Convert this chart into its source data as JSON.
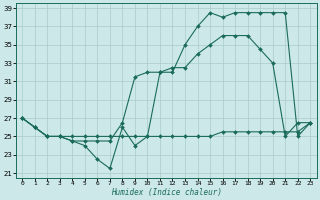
{
  "xlabel": "Humidex (Indice chaleur)",
  "background_color": "#cce8e8",
  "grid_color": "#aacccc",
  "line_color": "#1a6b5a",
  "xlim": [
    -0.5,
    23.5
  ],
  "ylim": [
    20.5,
    39.5
  ],
  "yticks": [
    21,
    23,
    25,
    27,
    29,
    31,
    33,
    35,
    37,
    39
  ],
  "xticks": [
    0,
    1,
    2,
    3,
    4,
    5,
    6,
    7,
    8,
    9,
    10,
    11,
    12,
    13,
    14,
    15,
    16,
    17,
    18,
    19,
    20,
    21,
    22,
    23
  ],
  "series": [
    {
      "x": [
        0,
        1,
        2,
        3,
        4,
        5,
        6,
        7,
        8,
        9,
        10,
        11,
        12,
        13,
        14,
        15,
        16,
        17,
        18,
        19,
        20,
        21,
        22,
        23
      ],
      "y": [
        27,
        26,
        25,
        25,
        24.5,
        24,
        22.5,
        21.5,
        26,
        24,
        25,
        32,
        32,
        35,
        37,
        38.5,
        38,
        38.5,
        38.5,
        38.5,
        38.5,
        38.5,
        25,
        26.5
      ]
    },
    {
      "x": [
        0,
        1,
        2,
        3,
        4,
        5,
        6,
        7,
        8,
        9,
        10,
        11,
        12,
        13,
        14,
        15,
        16,
        17,
        18,
        19,
        20,
        21,
        22,
        23
      ],
      "y": [
        27,
        26,
        25,
        25,
        24.5,
        24.5,
        24.5,
        24.5,
        26.5,
        31.5,
        32,
        32,
        32.5,
        32.5,
        34,
        35,
        36,
        36,
        36,
        34.5,
        33,
        25,
        26.5,
        26.5
      ]
    },
    {
      "x": [
        0,
        1,
        2,
        3,
        4,
        5,
        6,
        7,
        8,
        9,
        10,
        11,
        12,
        13,
        14,
        15,
        16,
        17,
        18,
        19,
        20,
        21,
        22,
        23
      ],
      "y": [
        27,
        26,
        25,
        25,
        25,
        25,
        25,
        25,
        25,
        25,
        25,
        25,
        25,
        25,
        25,
        25,
        25.5,
        25.5,
        25.5,
        25.5,
        25.5,
        25.5,
        25.5,
        26.5
      ]
    }
  ]
}
